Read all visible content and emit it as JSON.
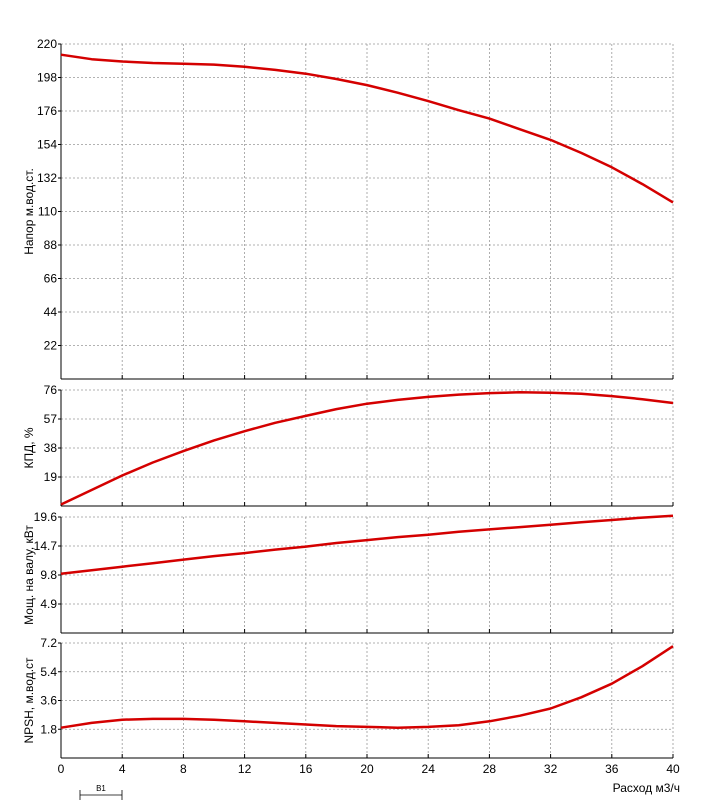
{
  "chart_data": [
    {
      "type": "line",
      "ylabel": "Напор м.вод.ст.",
      "x": [
        0,
        2,
        4,
        6,
        8,
        10,
        12,
        14,
        16,
        18,
        20,
        22,
        24,
        26,
        28,
        30,
        32,
        34,
        36,
        38,
        40
      ],
      "series": [
        {
          "color": "#d40000",
          "values": [
            213,
            210,
            208.5,
            207.5,
            207,
            206.5,
            205,
            203,
            200.5,
            197,
            193,
            188,
            182.5,
            176.5,
            171,
            164,
            157,
            148.5,
            139,
            128,
            116
          ]
        }
      ],
      "xlim": [
        0,
        40
      ],
      "xticks": [
        0,
        4,
        8,
        12,
        16,
        20,
        24,
        28,
        32,
        36,
        40
      ],
      "ylim": [
        0,
        220
      ],
      "yticks": [
        22,
        44,
        66,
        88,
        110,
        132,
        154,
        176,
        198,
        220
      ],
      "grid": true
    },
    {
      "type": "line",
      "ylabel": "КПД, %",
      "x": [
        0,
        2,
        4,
        6,
        8,
        10,
        12,
        14,
        16,
        18,
        20,
        22,
        24,
        26,
        28,
        30,
        32,
        34,
        36,
        38,
        40
      ],
      "series": [
        {
          "color": "#d40000",
          "values": [
            1,
            10.5,
            20,
            28.5,
            36,
            43,
            49,
            54.5,
            59,
            63.5,
            67,
            69.5,
            71.5,
            73,
            74,
            74.5,
            74.2,
            73.5,
            72,
            70,
            67.5
          ]
        }
      ],
      "xlim": [
        0,
        40
      ],
      "xticks": [
        0,
        4,
        8,
        12,
        16,
        20,
        24,
        28,
        32,
        36,
        40
      ],
      "ylim": [
        0,
        76
      ],
      "yticks": [
        19,
        38,
        57,
        76
      ],
      "grid": true
    },
    {
      "type": "line",
      "ylabel": "Мощ. на валу, кВт",
      "x": [
        0,
        2,
        4,
        6,
        8,
        10,
        12,
        14,
        16,
        18,
        20,
        22,
        24,
        26,
        28,
        30,
        32,
        34,
        36,
        38,
        40
      ],
      "series": [
        {
          "color": "#d40000",
          "values": [
            10,
            10.6,
            11.2,
            11.8,
            12.4,
            13,
            13.5,
            14.1,
            14.6,
            15.2,
            15.7,
            16.2,
            16.6,
            17.1,
            17.5,
            17.9,
            18.3,
            18.7,
            19.1,
            19.5,
            19.8
          ]
        }
      ],
      "xlim": [
        0,
        40
      ],
      "xticks": [
        0,
        4,
        8,
        12,
        16,
        20,
        24,
        28,
        32,
        36,
        40
      ],
      "ylim": [
        0,
        19.6
      ],
      "yticks": [
        4.9,
        9.8,
        14.7,
        19.6
      ],
      "grid": true
    },
    {
      "type": "line",
      "ylabel": "NPSH, м.вод.ст",
      "xlabel": "Расход м3/ч",
      "annotation": "B1",
      "x": [
        0,
        2,
        4,
        6,
        8,
        10,
        12,
        14,
        16,
        18,
        20,
        22,
        24,
        26,
        28,
        30,
        32,
        34,
        36,
        38,
        40
      ],
      "series": [
        {
          "color": "#d40000",
          "values": [
            1.9,
            2.2,
            2.4,
            2.45,
            2.45,
            2.4,
            2.3,
            2.2,
            2.1,
            2.0,
            1.95,
            1.9,
            1.95,
            2.05,
            2.3,
            2.65,
            3.1,
            3.8,
            4.65,
            5.75,
            7.0
          ]
        }
      ],
      "xlim": [
        0,
        40
      ],
      "xticks": [
        0,
        4,
        8,
        12,
        16,
        20,
        24,
        28,
        32,
        36,
        40
      ],
      "ylim": [
        0,
        7.2
      ],
      "yticks": [
        1.8,
        3.6,
        5.4,
        7.2
      ],
      "grid": true
    }
  ]
}
